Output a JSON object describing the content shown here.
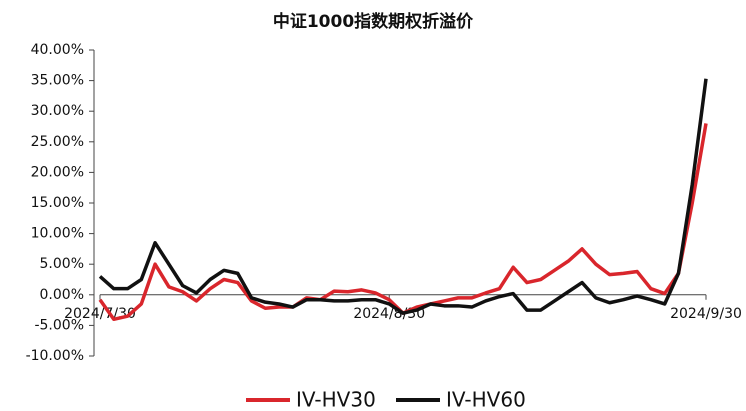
{
  "chart_data": {
    "type": "line",
    "title": "中证1000指数期权折溢价",
    "categories": [
      "2024/7/30",
      null,
      null,
      null,
      null,
      null,
      null,
      null,
      null,
      null,
      null,
      null,
      null,
      null,
      null,
      null,
      null,
      null,
      null,
      null,
      null,
      "2024/8/30",
      null,
      null,
      null,
      null,
      null,
      null,
      null,
      null,
      null,
      null,
      null,
      null,
      null,
      null,
      null,
      null,
      null,
      null,
      null,
      null,
      null,
      null,
      "2024/9/30"
    ],
    "series": [
      {
        "name": "IV-HV30",
        "color": "#d9262c",
        "values": [
          -0.8,
          -4,
          -3.5,
          -1.5,
          5,
          1.3,
          0.5,
          -1,
          1,
          2.5,
          2,
          -1,
          -2.2,
          -2,
          -2,
          -0.5,
          -0.8,
          0.6,
          0.5,
          0.8,
          0.3,
          -0.8,
          -3,
          -2,
          -1.5,
          -1,
          -0.5,
          -0.5,
          0.3,
          1,
          4.5,
          2,
          2.5,
          4,
          5.5,
          7.5,
          5,
          3.3,
          3.5,
          3.8,
          1,
          0.2,
          3.5,
          15,
          28
        ]
      },
      {
        "name": "IV-HV60",
        "color": "#111111",
        "values": [
          3,
          1,
          1,
          2.5,
          8.5,
          5,
          1.5,
          0.3,
          2.5,
          4,
          3.5,
          -0.5,
          -1.2,
          -1.5,
          -2,
          -0.8,
          -0.8,
          -1,
          -1,
          -0.8,
          -0.8,
          -1.5,
          -3,
          -2.5,
          -1.5,
          -1.8,
          -1.8,
          -2,
          -1,
          -0.3,
          0.2,
          -2.5,
          -2.5,
          -1,
          0.5,
          2,
          -0.5,
          -1.3,
          -0.8,
          -0.2,
          -0.8,
          -1.5,
          3.5,
          18,
          35.3
        ]
      }
    ],
    "ylim": [
      -10,
      40
    ],
    "yticks": [
      {
        "value": -10,
        "label": "-10.00%"
      },
      {
        "value": -5,
        "label": "-5.00%"
      },
      {
        "value": 0,
        "label": "0.00%"
      },
      {
        "value": 5,
        "label": "5.00%"
      },
      {
        "value": 10,
        "label": "10.00%"
      },
      {
        "value": 15,
        "label": "15.00%"
      },
      {
        "value": 20,
        "label": "20.00%"
      },
      {
        "value": 25,
        "label": "25.00%"
      },
      {
        "value": 30,
        "label": "30.00%"
      },
      {
        "value": 35,
        "label": "35.00%"
      },
      {
        "value": 40,
        "label": "40.00%"
      }
    ],
    "grid": false,
    "legend": "bottom"
  }
}
